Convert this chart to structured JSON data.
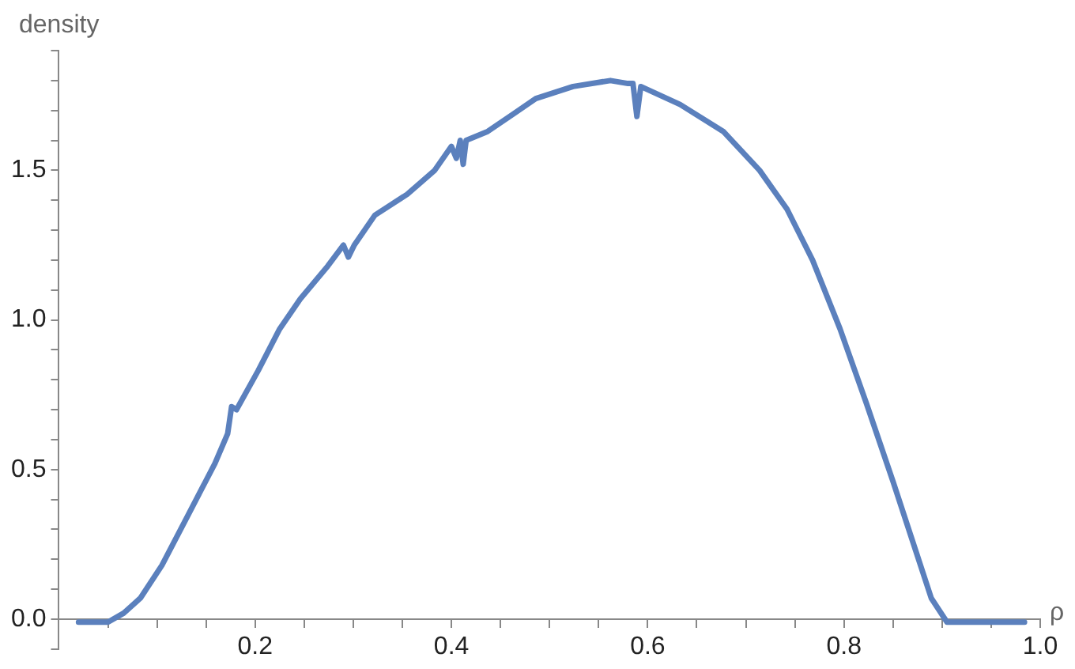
{
  "chart_data": {
    "type": "line",
    "xlabel": "ρ",
    "ylabel": "density",
    "xlim": [
      0,
      1
    ],
    "ylim": [
      -0.1,
      1.9
    ],
    "xticks": [
      {
        "value": 0.05,
        "label": null
      },
      {
        "value": 0.1,
        "label": null
      },
      {
        "value": 0.15,
        "label": null
      },
      {
        "value": 0.2,
        "label": "0.2"
      },
      {
        "value": 0.25,
        "label": null
      },
      {
        "value": 0.3,
        "label": null
      },
      {
        "value": 0.35,
        "label": null
      },
      {
        "value": 0.4,
        "label": "0.4"
      },
      {
        "value": 0.45,
        "label": null
      },
      {
        "value": 0.5,
        "label": null
      },
      {
        "value": 0.55,
        "label": null
      },
      {
        "value": 0.6,
        "label": "0.6"
      },
      {
        "value": 0.65,
        "label": null
      },
      {
        "value": 0.7,
        "label": null
      },
      {
        "value": 0.75,
        "label": null
      },
      {
        "value": 0.8,
        "label": "0.8"
      },
      {
        "value": 0.85,
        "label": null
      },
      {
        "value": 0.9,
        "label": null
      },
      {
        "value": 0.95,
        "label": null
      },
      {
        "value": 1,
        "label": "1.0"
      }
    ],
    "yticks": [
      {
        "value": -0.1,
        "label": null
      },
      {
        "value": 0,
        "label": "0.0"
      },
      {
        "value": 0.1,
        "label": null
      },
      {
        "value": 0.2,
        "label": null
      },
      {
        "value": 0.3,
        "label": null
      },
      {
        "value": 0.4,
        "label": null
      },
      {
        "value": 0.5,
        "label": "0.5"
      },
      {
        "value": 0.6,
        "label": null
      },
      {
        "value": 0.7,
        "label": null
      },
      {
        "value": 0.8,
        "label": null
      },
      {
        "value": 0.9,
        "label": null
      },
      {
        "value": 1,
        "label": "1.0"
      },
      {
        "value": 1.1,
        "label": null
      },
      {
        "value": 1.2,
        "label": null
      },
      {
        "value": 1.3,
        "label": null
      },
      {
        "value": 1.4,
        "label": null
      },
      {
        "value": 1.5,
        "label": "1.5"
      },
      {
        "value": 1.6,
        "label": null
      },
      {
        "value": 1.7,
        "label": null
      },
      {
        "value": 1.8,
        "label": null
      },
      {
        "value": 1.9,
        "label": null
      }
    ],
    "grid": false,
    "legend": false,
    "marker": "none",
    "line_style": "solid",
    "series": [
      {
        "color": "#5b80bd",
        "x": [
          0.02,
          0.05,
          0.066,
          0.083,
          0.105,
          0.132,
          0.159,
          0.172,
          0.176,
          0.181,
          0.203,
          0.225,
          0.246,
          0.274,
          0.29,
          0.295,
          0.301,
          0.322,
          0.355,
          0.383,
          0.4,
          0.405,
          0.409,
          0.412,
          0.415,
          0.437,
          0.464,
          0.486,
          0.524,
          0.562,
          0.58,
          0.585,
          0.589,
          0.593,
          0.633,
          0.677,
          0.714,
          0.742,
          0.768,
          0.796,
          0.823,
          0.85,
          0.873,
          0.889,
          0.905,
          0.984
        ],
        "values": [
          -0.01,
          -0.01,
          0.02,
          0.07,
          0.18,
          0.35,
          0.52,
          0.62,
          0.71,
          0.7,
          0.83,
          0.97,
          1.07,
          1.18,
          1.25,
          1.21,
          1.25,
          1.35,
          1.42,
          1.5,
          1.58,
          1.54,
          1.6,
          1.52,
          1.6,
          1.63,
          1.69,
          1.74,
          1.78,
          1.8,
          1.79,
          1.79,
          1.68,
          1.78,
          1.72,
          1.63,
          1.5,
          1.37,
          1.2,
          0.97,
          0.72,
          0.46,
          0.23,
          0.07,
          -0.01,
          -0.01
        ]
      }
    ]
  }
}
